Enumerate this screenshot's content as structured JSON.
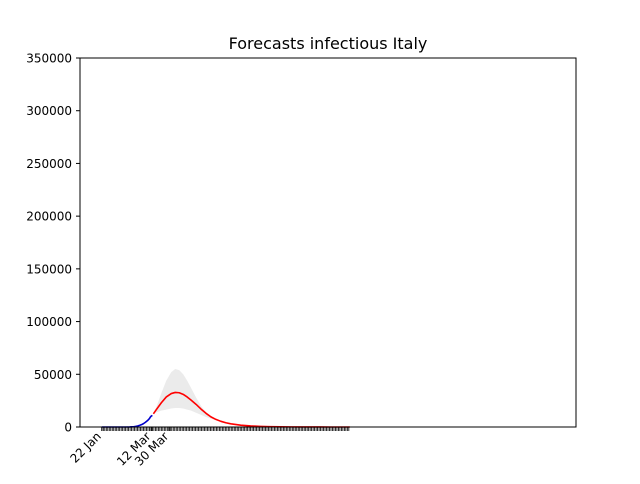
{
  "chart_data": {
    "type": "line",
    "title": "Forecasts infectious Italy",
    "xlabel": "",
    "ylabel": "",
    "x_ticks": [
      {
        "label": "22 Jan",
        "day": 0
      },
      {
        "label": "12 Mar",
        "day": 50
      },
      {
        "label": "30 Mar",
        "day": 68
      }
    ],
    "x_range_days": [
      -22,
      478
    ],
    "y_ticks": [
      0,
      50000,
      100000,
      150000,
      200000,
      250000,
      300000,
      350000
    ],
    "ylim": [
      0,
      350000
    ],
    "grid": false,
    "legend": "none",
    "series": [
      {
        "color": "#0000cc",
        "style": "observed",
        "points": [
          [
            0,
            0
          ],
          [
            5,
            0
          ],
          [
            10,
            0
          ],
          [
            15,
            0
          ],
          [
            20,
            0
          ],
          [
            25,
            0
          ],
          [
            28,
            50
          ],
          [
            30,
            150
          ],
          [
            32,
            250
          ],
          [
            34,
            500
          ],
          [
            36,
            900
          ],
          [
            38,
            1500
          ],
          [
            40,
            2200
          ],
          [
            42,
            3200
          ],
          [
            44,
            4500
          ],
          [
            46,
            6000
          ],
          [
            48,
            8000
          ],
          [
            49,
            9500
          ],
          [
            50,
            10500
          ],
          [
            51,
            11000
          ]
        ]
      },
      {
        "color": "#ff0000",
        "style": "forecast",
        "points": [
          [
            52,
            12500
          ],
          [
            55,
            16500
          ],
          [
            60,
            23000
          ],
          [
            65,
            28500
          ],
          [
            70,
            31700
          ],
          [
            74,
            32800
          ],
          [
            78,
            32500
          ],
          [
            82,
            31000
          ],
          [
            86,
            28500
          ],
          [
            90,
            25500
          ],
          [
            95,
            21500
          ],
          [
            100,
            17000
          ],
          [
            105,
            13000
          ],
          [
            110,
            9600
          ],
          [
            115,
            7200
          ],
          [
            120,
            5400
          ],
          [
            125,
            4000
          ],
          [
            130,
            3000
          ],
          [
            140,
            1700
          ],
          [
            150,
            1000
          ],
          [
            160,
            600
          ],
          [
            170,
            350
          ],
          [
            180,
            200
          ],
          [
            190,
            120
          ],
          [
            200,
            70
          ],
          [
            210,
            40
          ],
          [
            220,
            20
          ],
          [
            230,
            10
          ],
          [
            240,
            0
          ],
          [
            250,
            0
          ]
        ]
      }
    ],
    "band": {
      "color": "#ebebeb",
      "points": [
        [
          52,
          12500,
          13000
        ],
        [
          55,
          14000,
          19000
        ],
        [
          60,
          15500,
          32000
        ],
        [
          65,
          16500,
          44000
        ],
        [
          70,
          17500,
          52000
        ],
        [
          74,
          18000,
          55000
        ],
        [
          78,
          18000,
          54000
        ],
        [
          82,
          17500,
          50000
        ],
        [
          86,
          16500,
          44000
        ],
        [
          90,
          15500,
          37000
        ],
        [
          95,
          13500,
          28000
        ],
        [
          100,
          11500,
          20000
        ],
        [
          105,
          9500,
          14000
        ],
        [
          110,
          8000,
          10000
        ],
        [
          115,
          6500,
          7500
        ],
        [
          120,
          5200,
          5600
        ],
        [
          125,
          4000,
          4100
        ],
        [
          130,
          3000,
          3000
        ]
      ]
    }
  }
}
